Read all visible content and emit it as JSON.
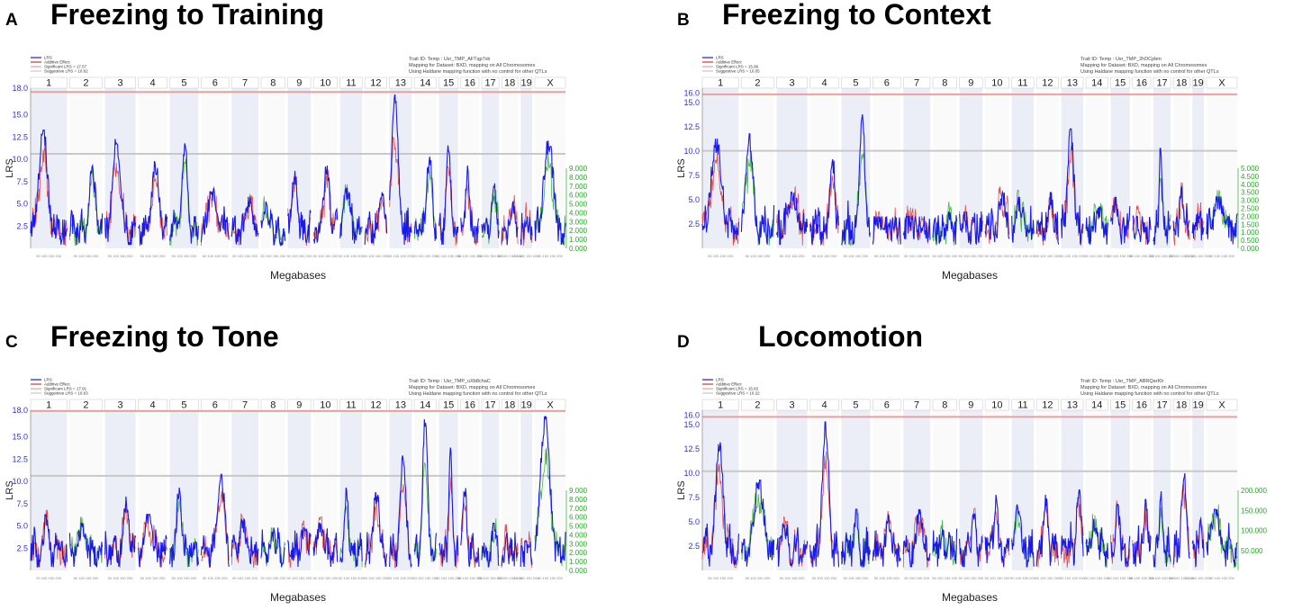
{
  "legend": {
    "lrs": "LRS",
    "additive": "Additive Effect",
    "significant_prefix": "Significant LRS = ",
    "suggestive_prefix": "Suggestive LRS = "
  },
  "info": {
    "trait_prefix": "Trait ID: Temp : Usr_TMP_",
    "mapping": "Mapping for Dataset: BXD, mapping on All Chromosomes",
    "method": "Using Haldane mapping function with no control for other QTLs"
  },
  "axis": {
    "xlabel": "Megabases",
    "ylabel": "LRS",
    "mb_ticks": "50 100 150 200"
  },
  "colors": {
    "lrs": "#1a1ae6",
    "additive_pos": "#e03030",
    "additive_neg": "#28a828",
    "sig_line": "#e8a0a0",
    "sug_line": "#c8c8c8",
    "band": "#eceef7"
  },
  "chart_data": [
    {
      "type": "line",
      "letter": "A",
      "title": "Freezing to Training",
      "trait_id": "AFTqp7xb",
      "significant": 17.57,
      "suggestive": 10.62,
      "ylim": [
        0,
        18
      ],
      "yticks": [
        "2.5",
        "5.0",
        "7.5",
        "10.0",
        "12.5",
        "15.0",
        "18.0"
      ],
      "right_ticks": [
        "0.000",
        "1.000",
        "2.000",
        "3.000",
        "4.000",
        "5.000",
        "6.000",
        "7.000",
        "8.000",
        "9.000"
      ],
      "right_max": 9,
      "chromosomes": [
        "1",
        "2",
        "3",
        "4",
        "5",
        "6",
        "7",
        "8",
        "9",
        "10",
        "11",
        "12",
        "13",
        "14",
        "15",
        "16",
        "17",
        "18",
        "19",
        "X"
      ],
      "chr_peaks": [
        13.0,
        9.0,
        12.0,
        9.5,
        11.5,
        6.5,
        5.5,
        5.0,
        8.5,
        9.0,
        6.5,
        6.0,
        17.0,
        10.0,
        11.5,
        9.0,
        7.0,
        5.0,
        4.0,
        11.8
      ]
    },
    {
      "type": "line",
      "letter": "B",
      "title": "Freezing to Context",
      "trait_id": "2hDCpbm",
      "significant": 15.86,
      "suggestive": 10.05,
      "ylim": [
        0,
        16.5
      ],
      "yticks": [
        "2.5",
        "5.0",
        "7.5",
        "10.0",
        "12.5",
        "15.0",
        "16.0"
      ],
      "right_ticks": [
        "0.000",
        "0.500",
        "1.000",
        "1.500",
        "2.000",
        "2.500",
        "3.000",
        "3.500",
        "4.000",
        "4.500",
        "5.000"
      ],
      "right_max": 5,
      "chromosomes": [
        "1",
        "2",
        "3",
        "4",
        "5",
        "6",
        "7",
        "8",
        "9",
        "10",
        "11",
        "12",
        "13",
        "14",
        "15",
        "16",
        "17",
        "18",
        "19",
        "X"
      ],
      "chr_peaks": [
        11.0,
        11.5,
        5.5,
        9.5,
        13.5,
        3.0,
        3.0,
        3.5,
        3.5,
        5.5,
        5.0,
        5.5,
        12.0,
        4.0,
        5.0,
        3.0,
        10.0,
        6.0,
        3.5,
        5.0
      ]
    },
    {
      "type": "line",
      "letter": "C",
      "title": "Freezing to Tone",
      "trait_id": "uXb8chaC",
      "significant": 17.91,
      "suggestive": 10.63,
      "ylim": [
        0,
        18
      ],
      "yticks": [
        "2.5",
        "5.0",
        "7.5",
        "10.0",
        "12.5",
        "15.0",
        "18.0"
      ],
      "right_ticks": [
        "0.000",
        "1.000",
        "2.000",
        "3.000",
        "4.000",
        "5.000",
        "6.000",
        "7.000",
        "8.000",
        "9.000"
      ],
      "right_max": 9,
      "chromosomes": [
        "1",
        "2",
        "3",
        "4",
        "5",
        "6",
        "7",
        "8",
        "9",
        "10",
        "11",
        "12",
        "13",
        "14",
        "15",
        "16",
        "17",
        "18",
        "19",
        "X"
      ],
      "chr_peaks": [
        6.0,
        5.0,
        8.0,
        6.0,
        9.0,
        10.5,
        5.5,
        4.5,
        4.5,
        5.0,
        9.0,
        8.5,
        13.0,
        17.0,
        13.5,
        9.0,
        5.0,
        4.0,
        3.0,
        17.0
      ]
    },
    {
      "type": "line",
      "letter": "D",
      "title": "Locomotion",
      "trait_id": "ABRQarKh",
      "significant": 15.82,
      "suggestive": 10.22,
      "ylim": [
        0,
        16.5
      ],
      "yticks": [
        "2.5",
        "5.0",
        "7.5",
        "10.0",
        "12.5",
        "15.0",
        "16.0"
      ],
      "right_ticks": [
        "50.000",
        "100.000",
        "150.000",
        "200.000"
      ],
      "right_max": 200,
      "chromosomes": [
        "1",
        "2",
        "3",
        "4",
        "5",
        "6",
        "7",
        "8",
        "9",
        "10",
        "11",
        "12",
        "13",
        "14",
        "15",
        "16",
        "17",
        "18",
        "19",
        "X"
      ],
      "chr_peaks": [
        13.0,
        9.0,
        4.5,
        15.0,
        6.0,
        5.5,
        6.0,
        4.0,
        5.5,
        7.5,
        6.5,
        7.5,
        8.0,
        5.0,
        6.5,
        7.0,
        8.0,
        10.0,
        5.0,
        6.0
      ]
    }
  ]
}
